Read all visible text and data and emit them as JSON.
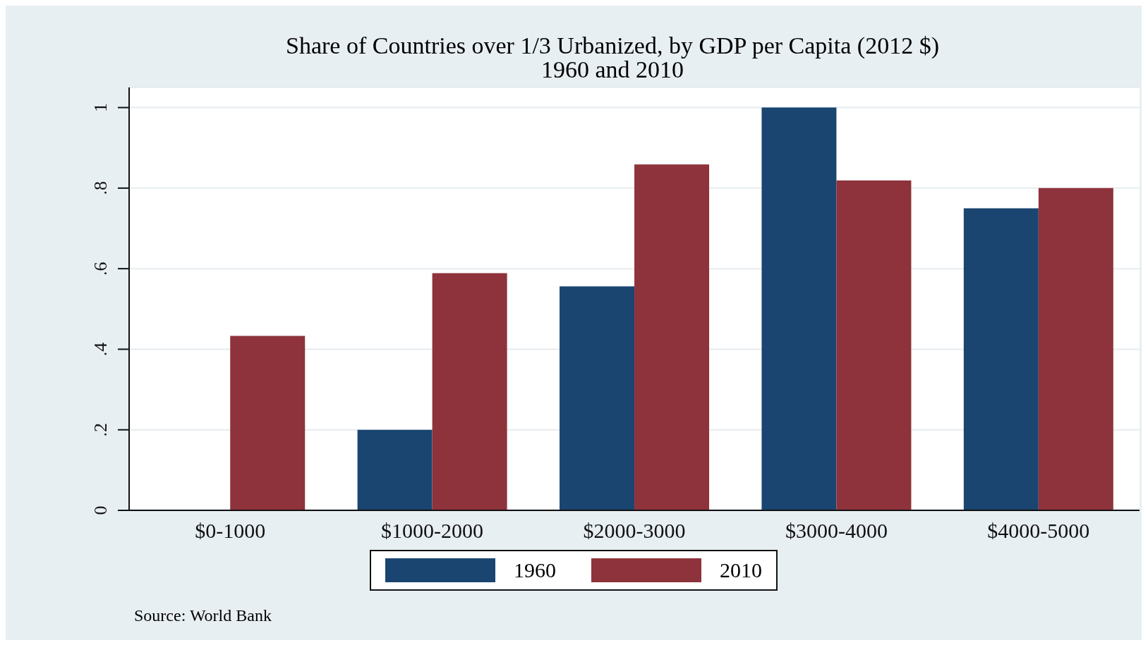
{
  "chart_data": {
    "type": "bar",
    "title": "Share of Countries over 1/3 Urbanized, by GDP per Capita (2012 $)",
    "subtitle": "1960 and 2010",
    "categories": [
      "$0-1000",
      "$1000-2000",
      "$2000-3000",
      "$3000-4000",
      "$4000-5000"
    ],
    "series": [
      {
        "name": "1960",
        "color": "#1a4570",
        "values": [
          0,
          0.2,
          0.556,
          1,
          0.75
        ]
      },
      {
        "name": "2010",
        "color": "#8e333b",
        "values": [
          0.433,
          0.589,
          0.859,
          0.819,
          0.8
        ]
      }
    ],
    "ylim": [
      0,
      1.05
    ],
    "yticks": [
      0,
      {
        "value": 0.2,
        "label": ".2"
      },
      {
        "value": 0.4,
        "label": ".4"
      },
      {
        "value": 0.6,
        "label": ".6"
      },
      {
        "value": 0.8,
        "label": ".8"
      },
      1
    ],
    "grid": "y",
    "legend": "bottom",
    "annotations": [
      "Source: World Bank"
    ]
  }
}
